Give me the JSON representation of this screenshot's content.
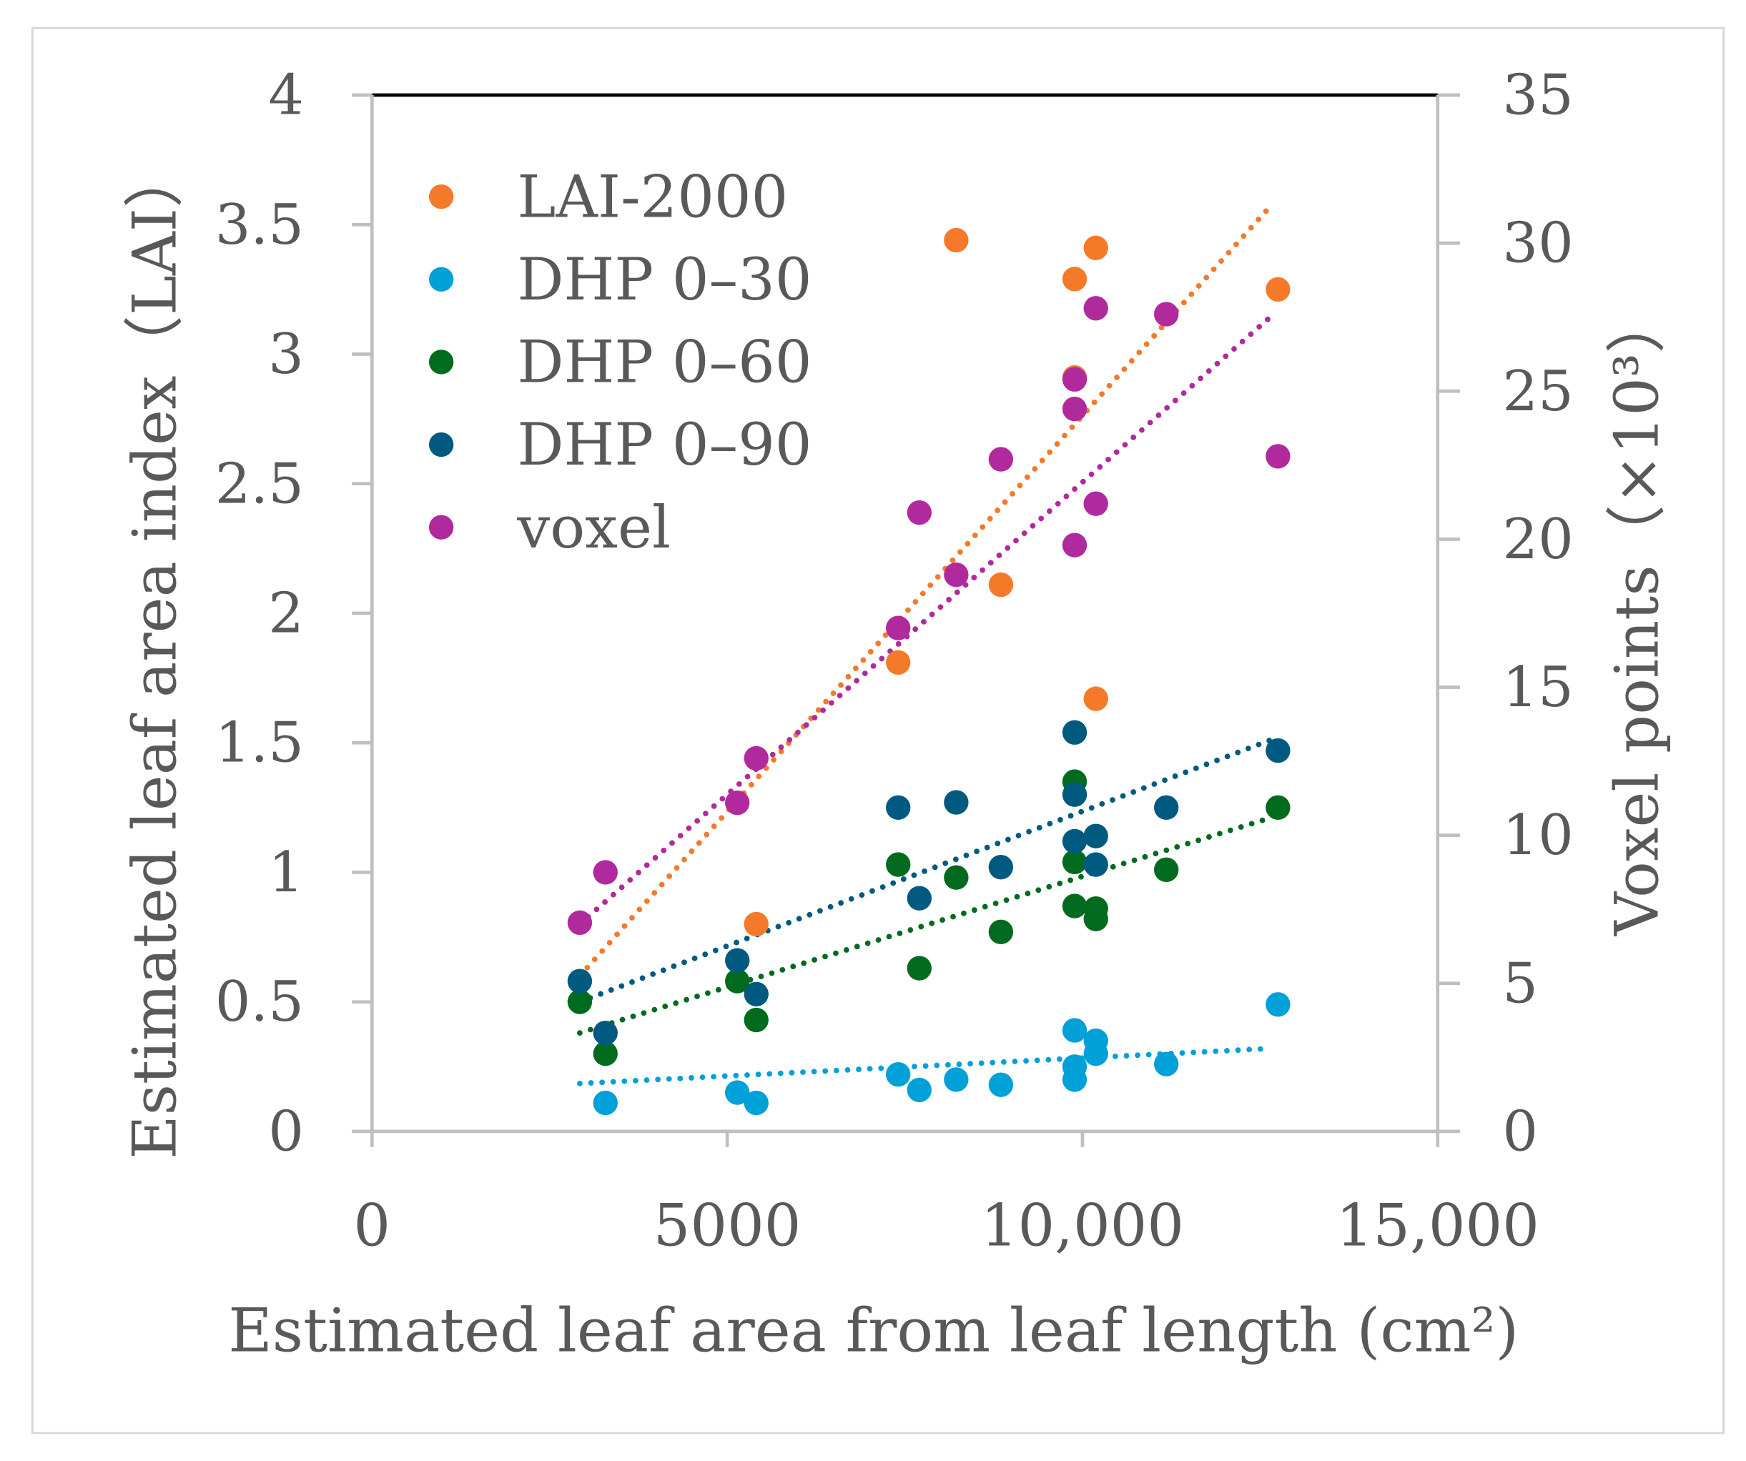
{
  "chart_data": {
    "type": "scatter",
    "xlabel": "Estimated leaf area from leaf length (cm²)",
    "ylabel": "Estimated leaf area index（LAI）",
    "y2label": "Voxel points（×10³）",
    "xlim": [
      0,
      15000
    ],
    "ylim": [
      0,
      4
    ],
    "y2lim": [
      0,
      35
    ],
    "x_ticks": [
      0,
      5000,
      10000,
      15000
    ],
    "x_tick_labels": [
      "0",
      "5000",
      "10,000",
      "15,000"
    ],
    "y_ticks": [
      0,
      0.5,
      1,
      1.5,
      2,
      2.5,
      3,
      3.5,
      4
    ],
    "y_tick_labels": [
      "0",
      "0.5",
      "1",
      "1.5",
      "2",
      "2.5",
      "3",
      "3.5",
      "4"
    ],
    "y2_ticks": [
      0,
      5,
      10,
      15,
      20,
      25,
      30,
      35
    ],
    "y2_tick_labels": [
      "0",
      "5",
      "10",
      "15",
      "20",
      "25",
      "30",
      "35"
    ],
    "legend_position": "top-left",
    "series": [
      {
        "name": "LAI-2000",
        "color": "#F47A2A",
        "axis": "left",
        "points": [
          [
            5409,
            0.8
          ],
          [
            7406,
            1.81
          ],
          [
            8223,
            3.44
          ],
          [
            8852,
            2.11
          ],
          [
            9890,
            3.29
          ],
          [
            9890,
            2.91
          ],
          [
            10189,
            3.41
          ],
          [
            10189,
            1.67
          ],
          [
            12752,
            3.25
          ]
        ],
        "trend": [
          [
            2925,
            0.6
          ],
          [
            12642,
            3.57
          ]
        ]
      },
      {
        "name": "DHP 0–30",
        "color": "#00A0D8",
        "axis": "left",
        "points": [
          [
            3286,
            0.11
          ],
          [
            5142,
            0.15
          ],
          [
            5409,
            0.11
          ],
          [
            7406,
            0.22
          ],
          [
            7704,
            0.16
          ],
          [
            8223,
            0.2
          ],
          [
            8852,
            0.18
          ],
          [
            9890,
            0.39
          ],
          [
            9890,
            0.25
          ],
          [
            9890,
            0.2
          ],
          [
            10189,
            0.35
          ],
          [
            10189,
            0.3
          ],
          [
            11180,
            0.26
          ],
          [
            12752,
            0.49
          ]
        ],
        "trend": [
          [
            2925,
            0.185
          ],
          [
            12642,
            0.32
          ]
        ]
      },
      {
        "name": "DHP 0–60",
        "color": "#006B1E",
        "axis": "left",
        "points": [
          [
            2925,
            0.5
          ],
          [
            3286,
            0.3
          ],
          [
            5142,
            0.58
          ],
          [
            5409,
            0.43
          ],
          [
            7406,
            1.03
          ],
          [
            7704,
            0.63
          ],
          [
            8223,
            0.98
          ],
          [
            8852,
            0.77
          ],
          [
            9890,
            1.35
          ],
          [
            9890,
            1.04
          ],
          [
            9890,
            0.87
          ],
          [
            10189,
            0.86
          ],
          [
            10189,
            0.82
          ],
          [
            11180,
            1.01
          ],
          [
            12752,
            1.25
          ]
        ],
        "trend": [
          [
            2925,
            0.38
          ],
          [
            12642,
            1.21
          ]
        ]
      },
      {
        "name": "DHP 0–90",
        "color": "#005A80",
        "axis": "left",
        "points": [
          [
            2925,
            0.58
          ],
          [
            3286,
            0.38
          ],
          [
            5142,
            0.66
          ],
          [
            5409,
            0.53
          ],
          [
            7406,
            1.25
          ],
          [
            7704,
            0.9
          ],
          [
            8223,
            1.27
          ],
          [
            8852,
            1.02
          ],
          [
            9890,
            1.54
          ],
          [
            9890,
            1.3
          ],
          [
            9890,
            1.12
          ],
          [
            10189,
            1.14
          ],
          [
            10189,
            1.03
          ],
          [
            11180,
            1.25
          ],
          [
            12752,
            1.47
          ]
        ],
        "trend": [
          [
            2925,
            0.5
          ],
          [
            12642,
            1.51
          ]
        ]
      },
      {
        "name": "voxel",
        "color": "#B02A9E",
        "axis": "right",
        "points": [
          [
            2925,
            7.05
          ],
          [
            3286,
            8.75
          ],
          [
            5142,
            11.1
          ],
          [
            5409,
            12.6
          ],
          [
            7406,
            17.0
          ],
          [
            7704,
            20.9
          ],
          [
            8223,
            18.8
          ],
          [
            8852,
            22.7
          ],
          [
            9890,
            19.8
          ],
          [
            9890,
            24.4
          ],
          [
            9890,
            25.4
          ],
          [
            10189,
            21.2
          ],
          [
            10189,
            27.8
          ],
          [
            11180,
            27.6
          ],
          [
            12752,
            22.8
          ]
        ],
        "trend": [
          [
            2925,
            7.0
          ],
          [
            12642,
            27.5
          ]
        ]
      }
    ]
  }
}
